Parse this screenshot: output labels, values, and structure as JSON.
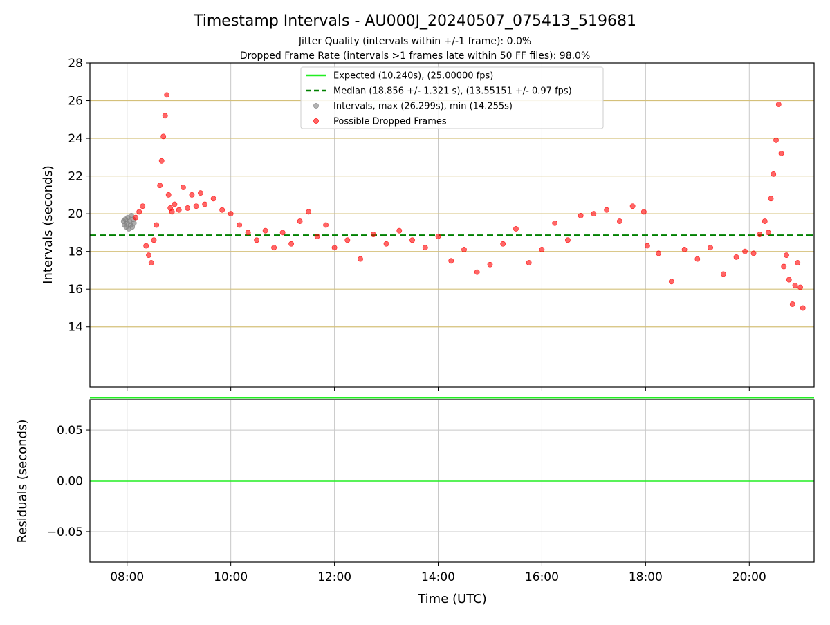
{
  "figure": {
    "title": "Timestamp Intervals - AU000J_20240507_075413_519681",
    "subtitle_jitter": "Jitter Quality (intervals within +/-1 frame): 0.0%",
    "subtitle_dropped": "Dropped Frame Rate (intervals >1 frames late within 50 FF files): 98.0%",
    "xlabel": "Time (UTC)"
  },
  "colors": {
    "expected": "#22ee22",
    "median": "#008000",
    "intervals": "#808080",
    "dropped": "#ff0000",
    "grid_gold": "#d4c07a",
    "grid_gray": "#c8c8c8"
  },
  "chart_data": [
    {
      "type": "scatter",
      "ylabel": "Intervals (seconds)",
      "xlim": [
        "07:17",
        "21:15"
      ],
      "ylim": [
        10.8,
        28
      ],
      "x_ticks": [
        "08:00",
        "10:00",
        "12:00",
        "14:00",
        "16:00",
        "18:00",
        "20:00"
      ],
      "y_ticks": [
        14,
        16,
        18,
        20,
        22,
        24,
        26,
        28
      ],
      "grid": true,
      "legend_position": "top-center",
      "legend": [
        {
          "label": "Expected (10.240s), (25.00000 fps)",
          "kind": "line",
          "style": "solid"
        },
        {
          "label": "Median (18.856 +/- 1.321 s), (13.55151 +/- 0.97 fps)",
          "kind": "line",
          "style": "dashed"
        },
        {
          "label": "Intervals, max (26.299s), min (14.255s)",
          "kind": "marker",
          "color_key": "intervals"
        },
        {
          "label": "Possible Dropped Frames",
          "kind": "marker",
          "color_key": "dropped"
        }
      ],
      "expected_interval": 10.24,
      "median_interval": 18.856,
      "intervals_series": {
        "name": "Intervals",
        "x": [
          "07:56",
          "07:57",
          "07:58",
          "07:59",
          "08:00",
          "08:01",
          "08:02",
          "08:03",
          "08:04",
          "08:05",
          "08:06",
          "08:07",
          "08:08"
        ],
        "y": [
          19.6,
          19.4,
          19.7,
          19.3,
          19.5,
          19.8,
          19.2,
          19.6,
          19.4,
          19.9,
          19.3,
          19.7,
          19.5
        ]
      },
      "dropped_series": {
        "name": "Possible Dropped Frames",
        "x": [
          "08:10",
          "08:14",
          "08:18",
          "08:22",
          "08:25",
          "08:28",
          "08:31",
          "08:34",
          "08:38",
          "08:40",
          "08:42",
          "08:44",
          "08:46",
          "08:48",
          "08:50",
          "08:52",
          "08:55",
          "09:00",
          "09:05",
          "09:10",
          "09:15",
          "09:20",
          "09:25",
          "09:30",
          "09:40",
          "09:50",
          "10:00",
          "10:10",
          "10:20",
          "10:30",
          "10:40",
          "10:50",
          "11:00",
          "11:10",
          "11:20",
          "11:30",
          "11:40",
          "11:50",
          "12:00",
          "12:15",
          "12:30",
          "12:45",
          "13:00",
          "13:15",
          "13:30",
          "13:45",
          "14:00",
          "14:15",
          "14:30",
          "14:45",
          "15:00",
          "15:15",
          "15:30",
          "15:45",
          "16:00",
          "16:15",
          "16:30",
          "16:45",
          "17:00",
          "17:15",
          "17:30",
          "17:45",
          "17:58",
          "18:02",
          "18:15",
          "18:30",
          "18:45",
          "19:00",
          "19:15",
          "19:30",
          "19:45",
          "19:55",
          "20:05",
          "20:12",
          "20:18",
          "20:22",
          "20:25",
          "20:28",
          "20:31",
          "20:34",
          "20:37",
          "20:40",
          "20:43",
          "20:46",
          "20:50",
          "20:53",
          "20:56",
          "20:59",
          "21:02"
        ],
        "y": [
          19.8,
          20.1,
          20.4,
          18.3,
          17.8,
          17.4,
          18.6,
          19.4,
          21.5,
          22.8,
          24.1,
          25.2,
          26.3,
          21.0,
          20.3,
          20.1,
          20.5,
          20.2,
          21.4,
          20.3,
          21.0,
          20.4,
          21.1,
          20.5,
          20.8,
          20.2,
          20.0,
          19.4,
          19.0,
          18.6,
          19.1,
          18.2,
          19.0,
          18.4,
          19.6,
          20.1,
          18.8,
          19.4,
          18.2,
          18.6,
          17.6,
          18.9,
          18.4,
          19.1,
          18.6,
          18.2,
          18.8,
          17.5,
          18.1,
          16.9,
          17.3,
          18.4,
          19.2,
          17.4,
          18.1,
          19.5,
          18.6,
          19.9,
          20.0,
          20.2,
          19.6,
          20.4,
          20.1,
          18.3,
          17.9,
          16.4,
          18.1,
          17.6,
          18.2,
          16.8,
          17.7,
          18.0,
          17.9,
          18.9,
          19.6,
          19.0,
          20.8,
          22.1,
          23.9,
          25.8,
          23.2,
          17.2,
          17.8,
          16.5,
          15.2,
          16.2,
          17.4,
          16.1,
          15.0
        ]
      }
    },
    {
      "type": "line",
      "ylabel": "Residuals (seconds)",
      "xlim": [
        "07:17",
        "21:15"
      ],
      "ylim": [
        -0.08,
        0.08
      ],
      "y_tick_labels": [
        "0.05",
        "0.00",
        "−0.05"
      ],
      "y_tick_values": [
        0.05,
        0.0,
        -0.05
      ],
      "x_tick_labels": [
        "08:00",
        "10:00",
        "12:00",
        "14:00",
        "16:00",
        "18:00",
        "20:00"
      ],
      "grid": true,
      "series": [
        {
          "x": [
            "07:17",
            "21:15"
          ],
          "y": [
            0.0,
            0.0
          ]
        }
      ]
    }
  ]
}
